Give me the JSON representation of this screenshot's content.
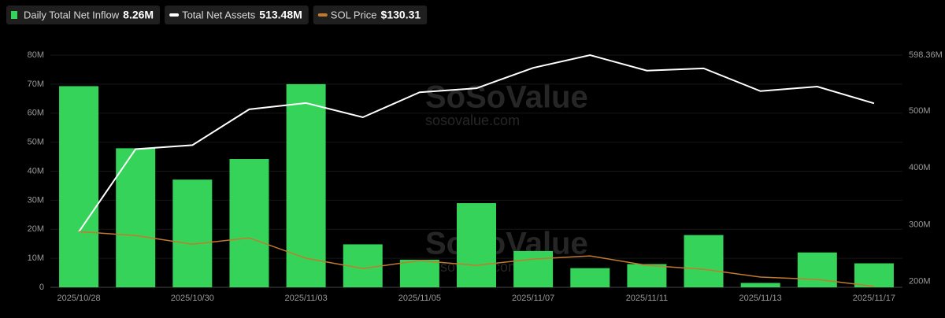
{
  "chart_data": {
    "type": "bar_line",
    "categories": [
      "2025/10/28",
      null,
      "2025/10/30",
      null,
      "2025/11/03",
      null,
      "2025/11/05",
      null,
      "2025/11/07",
      null,
      "2025/11/11",
      null,
      "2025/11/13",
      null,
      "2025/11/17"
    ],
    "series": [
      {
        "name": "Daily Total Net Inflow",
        "type": "bar",
        "color": "#35d35a",
        "legend_value": "8.26M",
        "values": [
          69.3,
          47.9,
          37.1,
          44.2,
          70.0,
          14.8,
          9.5,
          29.0,
          12.5,
          6.6,
          8.0,
          18.0,
          1.5,
          12.0,
          8.26
        ]
      },
      {
        "name": "Total Net Assets",
        "type": "line",
        "axis": "y2",
        "color": "#ffffff",
        "legend_value": "513.48M",
        "values": [
          287.5,
          433,
          440,
          503,
          514,
          489,
          533,
          540,
          576,
          598.36,
          571,
          575,
          535,
          543,
          513.48
        ]
      },
      {
        "name": "SOL Price",
        "type": "line",
        "axis": "y3",
        "color": "#c47a2c",
        "legend_value": "$130.31",
        "values": [
          200,
          195,
          184,
          192,
          166,
          153,
          163,
          157,
          165,
          169,
          157,
          152,
          142,
          139,
          130.31
        ]
      }
    ],
    "ylim": [
      0,
      80
    ],
    "yticks": [
      0,
      {
        "value": 10,
        "label": "10M"
      },
      {
        "value": 20,
        "label": "20M"
      },
      {
        "value": 30,
        "label": "30M"
      },
      {
        "value": 40,
        "label": "40M"
      },
      {
        "value": 50,
        "label": "50M"
      },
      {
        "value": 60,
        "label": "60M"
      },
      {
        "value": 70,
        "label": "70M"
      },
      {
        "value": 80,
        "label": "80M"
      }
    ],
    "y2lim": [
      190,
      598.36
    ],
    "y2ticks": [
      {
        "value": 200,
        "label": "200M"
      },
      {
        "value": 300,
        "label": "300M"
      },
      {
        "value": 400,
        "label": "400M"
      },
      {
        "value": 500,
        "label": "500M"
      },
      {
        "value": 598.36,
        "label": "598.36M"
      }
    ],
    "y3lim": [
      129,
      425
    ],
    "grid": true,
    "watermark": {
      "brand": "SoSoValue",
      "site": "sosovalue.com"
    }
  }
}
